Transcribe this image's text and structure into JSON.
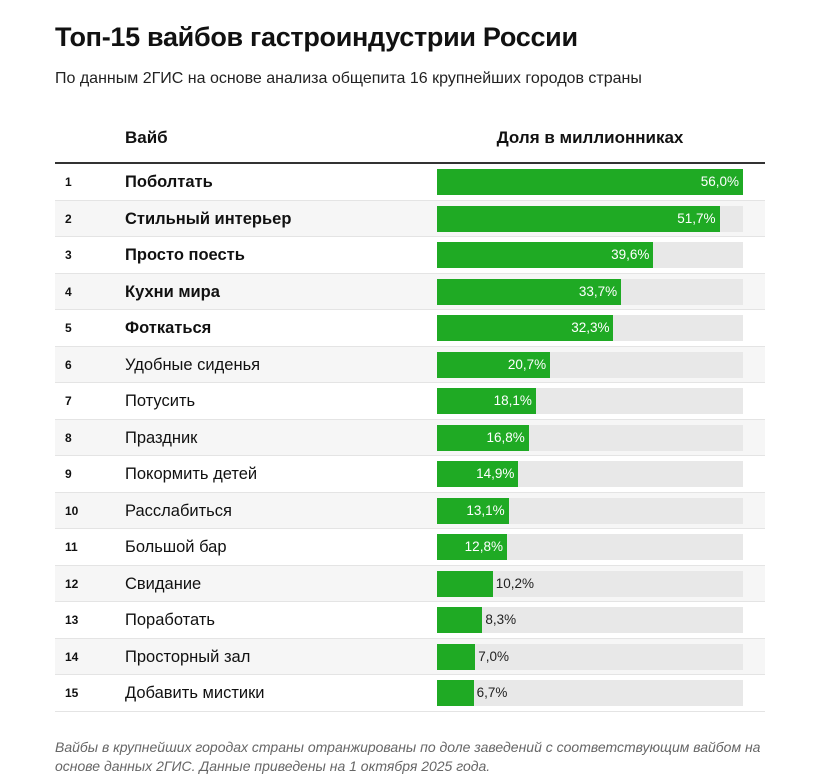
{
  "title": "Топ-15 вайбов гастроиндустрии России",
  "subtitle": "По данным 2ГИС на основе анализа общепита 16 крупнейших городов страны",
  "footnote": "Вайбы в крупнейших городах страны отранжированы по доле заведений с соответствующим вайбом на основе данных 2ГИС. Данные приведены на 1 октября 2025 года.",
  "colors": {
    "bar": "#1faa24",
    "track": "#e8e8e8"
  },
  "chart_data": {
    "type": "table",
    "columns": [
      "Вайб",
      "Доля в миллионниках"
    ],
    "xlim": [
      0,
      56
    ],
    "rows": [
      {
        "rank": "1",
        "label": "Поболтать",
        "value": 56.0,
        "text": "56,0%",
        "bold": true
      },
      {
        "rank": "2",
        "label": "Стильный интерьер",
        "value": 51.7,
        "text": "51,7%",
        "bold": true
      },
      {
        "rank": "3",
        "label": "Просто поесть",
        "value": 39.6,
        "text": "39,6%",
        "bold": true
      },
      {
        "rank": "4",
        "label": "Кухни мира",
        "value": 33.7,
        "text": "33,7%",
        "bold": true
      },
      {
        "rank": "5",
        "label": "Фоткаться",
        "value": 32.3,
        "text": "32,3%",
        "bold": true
      },
      {
        "rank": "6",
        "label": "Удобные сиденья",
        "value": 20.7,
        "text": "20,7%"
      },
      {
        "rank": "7",
        "label": "Потусить",
        "value": 18.1,
        "text": "18,1%"
      },
      {
        "rank": "8",
        "label": "Праздник",
        "value": 16.8,
        "text": "16,8%"
      },
      {
        "rank": "9",
        "label": "Покормить детей",
        "value": 14.9,
        "text": "14,9%"
      },
      {
        "rank": "10",
        "label": "Расслабиться",
        "value": 13.1,
        "text": "13,1%"
      },
      {
        "rank": "11",
        "label": "Большой бар",
        "value": 12.8,
        "text": "12,8%"
      },
      {
        "rank": "12",
        "label": "Свидание",
        "value": 10.2,
        "text": "10,2%"
      },
      {
        "rank": "13",
        "label": "Поработать",
        "value": 8.3,
        "text": "8,3%"
      },
      {
        "rank": "14",
        "label": "Просторный зал",
        "value": 7.0,
        "text": "7,0%"
      },
      {
        "rank": "15",
        "label": "Добавить мистики",
        "value": 6.7,
        "text": "6,7%"
      }
    ]
  }
}
